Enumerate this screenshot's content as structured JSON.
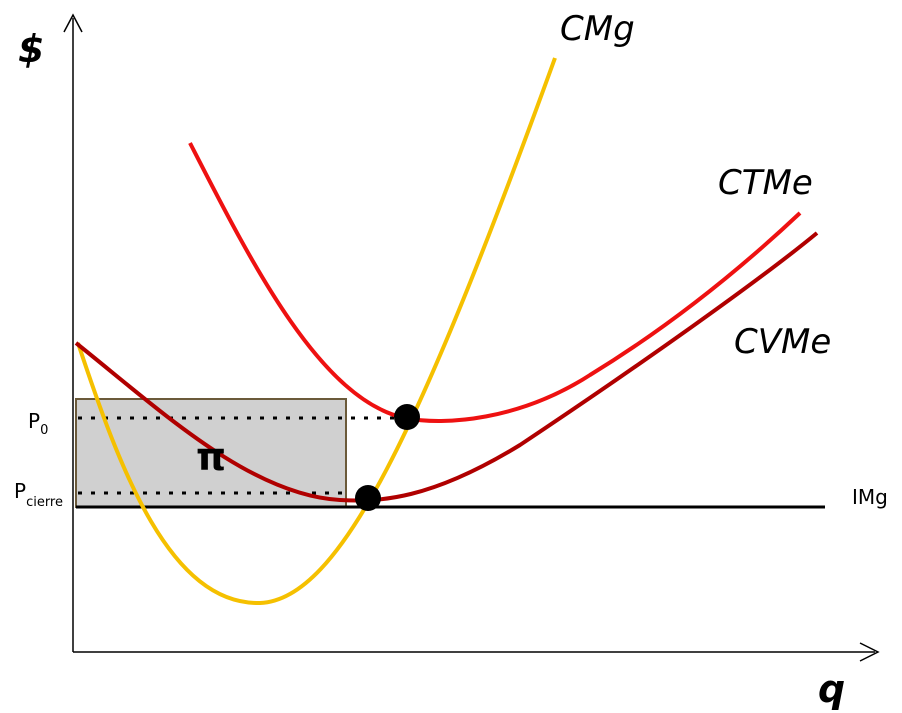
{
  "diagram": {
    "y_axis_label": "$",
    "x_axis_label": "q",
    "curves": {
      "cmg": {
        "label": "CMg",
        "color": "#F5C000"
      },
      "ctme": {
        "label": "CTMe",
        "color": "#EE1111"
      },
      "cvme": {
        "label": "CVMe",
        "color": "#B00000"
      }
    },
    "img_line": {
      "label": "IMg",
      "color": "#000000"
    },
    "prices": {
      "p0": {
        "main": "P",
        "sub": "0"
      },
      "pcierre": {
        "main": "P",
        "sub": "cierre"
      }
    },
    "profit_area": {
      "label": "π",
      "fill": "#D0D0D0",
      "stroke": "#6B5A3A"
    }
  }
}
